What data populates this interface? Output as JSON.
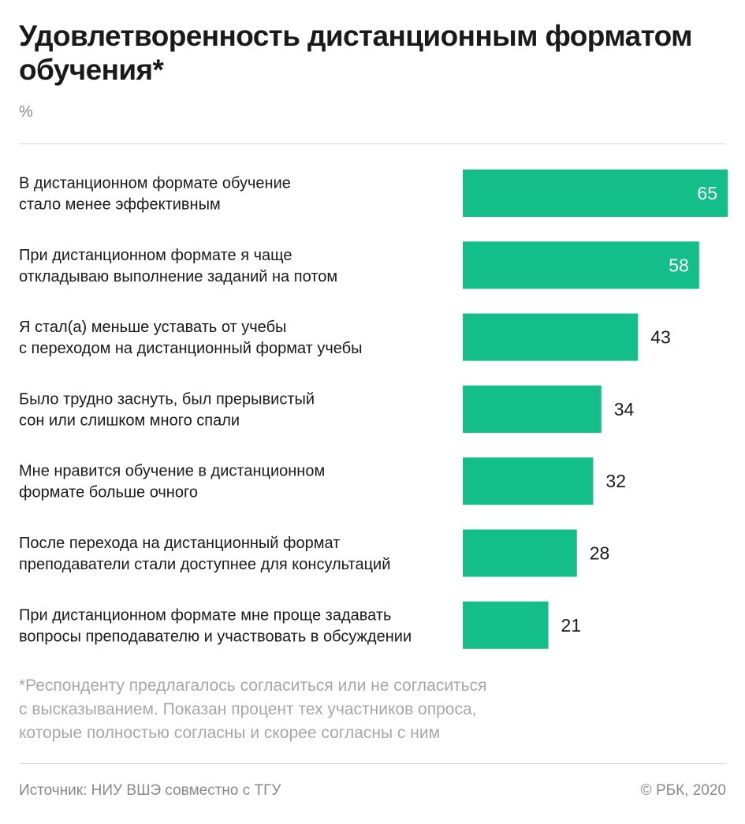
{
  "title": "Удовлетворенность дистанционным форматом обучения*",
  "unit": "%",
  "colors": {
    "bar": "#13be88",
    "label_inside": "#ffffff",
    "label_outside": "#1a1a1a",
    "text": "#1a1a1a",
    "muted": "#8a8a8a"
  },
  "chart_data": {
    "type": "bar",
    "orientation": "horizontal",
    "categories": [
      "В дистанционном формате обучение\nстало менее эффективным",
      "При дистанционном формате я чаще\nоткладываю выполнение заданий на потом",
      "Я стал(а) меньше уставать от учебы\nс переходом на дистанционный формат учебы",
      "Было трудно заснуть, был прерывистый\nсон или слишком много спали",
      "Мне нравится обучение в дистанционном\nформате больше очного",
      "После перехода на дистанционный формат\nпреподаватели стали доступнее для консультаций",
      "При дистанционном формате мне проще задавать\nвопросы преподавателю и участвовать в обсуждении"
    ],
    "values": [
      65,
      58,
      43,
      34,
      32,
      28,
      21
    ],
    "xlim": [
      0,
      65
    ],
    "grid": false,
    "legend": "none"
  },
  "footnote": "*Респонденту предлагалось согласиться или не согласиться\nс высказыванием. Показан процент тех участников опроса,\nкоторые полностью согласны и скорее согласны с ним",
  "source": "Источник: НИУ ВШЭ совместно с ТГУ",
  "copyright": "© РБК, 2020"
}
